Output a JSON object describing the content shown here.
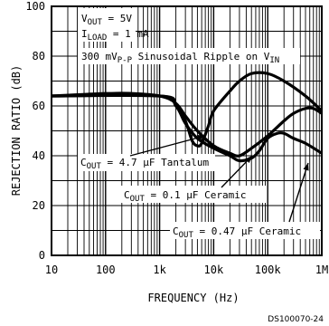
{
  "chart_data": {
    "type": "line",
    "xlabel": "FREQUENCY (Hz)",
    "ylabel": "REJECTION RATIO (dB)",
    "x_scale": "log",
    "xlim": [
      10,
      1000000
    ],
    "ylim": [
      0,
      100
    ],
    "x_ticks": [
      10,
      100,
      1000,
      10000,
      100000,
      1000000
    ],
    "x_tick_labels": [
      "10",
      "100",
      "1k",
      "10k",
      "100k",
      "1M"
    ],
    "y_ticks": [
      0,
      20,
      40,
      60,
      80,
      100
    ],
    "y_tick_labels": [
      "0",
      "20",
      "40",
      "60",
      "80",
      "100"
    ],
    "grid": true,
    "conditions": {
      "vout": "V_OUT = 5V",
      "iload": "I_LOAD = 1 mA",
      "ripple": "300 mV_P-P Sinusoidal Ripple on V_IN"
    },
    "series": [
      {
        "name": "C_OUT = 4.7 μF Tantalum",
        "x": [
          10,
          30,
          100,
          300,
          1000,
          2000,
          3000,
          4000,
          5000,
          6000,
          8000,
          10000,
          20000,
          30000,
          50000,
          100000,
          200000,
          500000,
          1000000
        ],
        "y": [
          64,
          64.5,
          65,
          65,
          64,
          61,
          54,
          46,
          44,
          45,
          52,
          58,
          66,
          70,
          73,
          73,
          70,
          64,
          58
        ]
      },
      {
        "name": "C_OUT = 0.1 μF Ceramic",
        "x": [
          10,
          1000,
          2000,
          3000,
          5000,
          10000,
          20000,
          30000,
          50000,
          100000,
          200000,
          300000,
          500000,
          700000,
          1000000
        ],
        "y": [
          64,
          64,
          61,
          56,
          50,
          44,
          41,
          40,
          43,
          48,
          54,
          57,
          59,
          59,
          57
        ]
      },
      {
        "name": "C_OUT = 0.47 μF Ceramic",
        "x": [
          10,
          1000,
          2000,
          3000,
          5000,
          10000,
          20000,
          30000,
          50000,
          70000,
          100000,
          150000,
          200000,
          300000,
          500000,
          1000000
        ],
        "y": [
          64,
          64,
          60,
          53,
          47,
          43,
          40,
          38,
          39,
          42,
          47,
          49,
          49,
          47,
          45,
          41
        ]
      }
    ],
    "labels": {
      "tantalum": "C_OUT = 4.7 μF Tantalum",
      "c01": "C_OUT = 0.1 μF Ceramic",
      "c047": "C_OUT = 0.47 μF Ceramic"
    },
    "figure_code": "DS100070-24"
  },
  "colors": {
    "ink": "#000000",
    "background": "#ffffff"
  }
}
